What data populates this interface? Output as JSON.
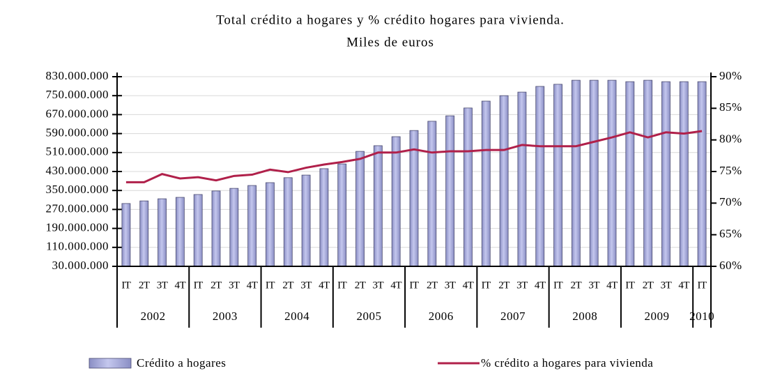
{
  "chart_data": {
    "type": "bar",
    "title": "Total crédito a hogares y % crédito hogares para vivienda.",
    "subtitle": "Miles de euros",
    "categories": [
      "IT",
      "2T",
      "3T",
      "4T",
      "IT",
      "2T",
      "3T",
      "4T",
      "IT",
      "2T",
      "3T",
      "4T",
      "IT",
      "2T",
      "3T",
      "4T",
      "IT",
      "2T",
      "3T",
      "4T",
      "IT",
      "2T",
      "3T",
      "4T",
      "IT",
      "2T",
      "3T",
      "4T",
      "IT",
      "2T",
      "3T",
      "4T",
      "IT"
    ],
    "years": [
      "2002",
      "2003",
      "2004",
      "2005",
      "2006",
      "2007",
      "2008",
      "2009",
      "2010"
    ],
    "series": [
      {
        "name": "Crédito a hogares",
        "color": "#a4a8d8",
        "values": [
          295000000,
          306000000,
          315000000,
          321000000,
          333000000,
          348000000,
          359000000,
          371000000,
          383000000,
          404000000,
          415000000,
          442000000,
          462000000,
          515000000,
          539000000,
          577000000,
          603000000,
          642000000,
          665000000,
          698000000,
          727000000,
          750000000,
          765000000,
          789000000,
          798000000,
          815000000,
          815000000,
          815000000,
          809000000,
          815000000,
          809000000,
          809000000,
          809000000
        ]
      },
      {
        "name": "% crédito a hogares para vivienda",
        "color": "#b0204a",
        "axis": "y2",
        "type": "line",
        "values": [
          73.3,
          73.3,
          74.6,
          73.9,
          74.1,
          73.6,
          74.3,
          74.5,
          75.3,
          74.9,
          75.6,
          76.1,
          76.5,
          77.0,
          78.0,
          78.0,
          78.5,
          78.0,
          78.2,
          78.2,
          78.4,
          78.4,
          79.2,
          79.0,
          79.0,
          79.0,
          79.7,
          80.4,
          81.2,
          80.4,
          81.2,
          81.0,
          81.4
        ]
      }
    ],
    "ylim": [
      30000000,
      830000000
    ],
    "yticks": [
      {
        "value": 30000000,
        "label": "30.000.000"
      },
      {
        "value": 110000000,
        "label": "110.000.000"
      },
      {
        "value": 190000000,
        "label": "190.000.000"
      },
      {
        "value": 270000000,
        "label": "270.000.000"
      },
      {
        "value": 350000000,
        "label": "350.000.000"
      },
      {
        "value": 430000000,
        "label": "430.000.000"
      },
      {
        "value": 510000000,
        "label": "510.000.000"
      },
      {
        "value": 590000000,
        "label": "590.000.000"
      },
      {
        "value": 670000000,
        "label": "670.000.000"
      },
      {
        "value": 750000000,
        "label": "750.000.000"
      },
      {
        "value": 830000000,
        "label": "830.000.000"
      }
    ],
    "y2lim": [
      60,
      90
    ],
    "y2ticks": [
      {
        "value": 60,
        "label": "60%"
      },
      {
        "value": 65,
        "label": "65%"
      },
      {
        "value": 70,
        "label": "70%"
      },
      {
        "value": 75,
        "label": "75%"
      },
      {
        "value": 80,
        "label": "80%"
      },
      {
        "value": 85,
        "label": "85%"
      },
      {
        "value": 90,
        "label": "90%"
      }
    ],
    "grid": true,
    "legend": "bottom"
  }
}
